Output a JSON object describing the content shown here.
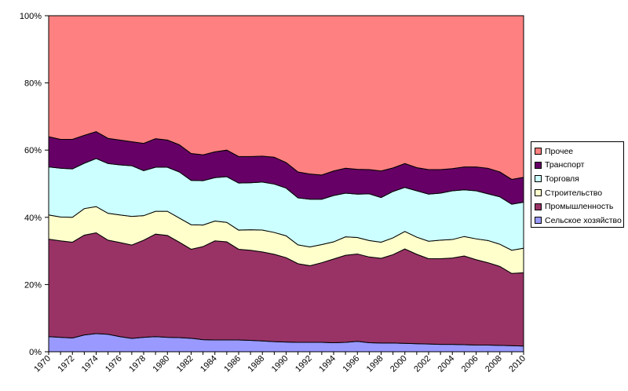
{
  "chart_data": {
    "type": "area",
    "stacked": true,
    "normalized": true,
    "x": [
      1970,
      1971,
      1972,
      1973,
      1974,
      1975,
      1976,
      1977,
      1978,
      1979,
      1980,
      1981,
      1982,
      1983,
      1984,
      1985,
      1986,
      1987,
      1988,
      1989,
      1990,
      1991,
      1992,
      1993,
      1994,
      1995,
      1996,
      1997,
      1998,
      1999,
      2000,
      2001,
      2002,
      2003,
      2004,
      2005,
      2006,
      2007,
      2008,
      2009,
      2010
    ],
    "x_tick_labels": [
      "1970",
      "1972",
      "1974",
      "1976",
      "1978",
      "1980",
      "1982",
      "1984",
      "1986",
      "1988",
      "1990",
      "1992",
      "1994",
      "1996",
      "1998",
      "2000",
      "2002",
      "2004",
      "2006",
      "2008",
      "2010"
    ],
    "y_tick_labels": [
      "0%",
      "20%",
      "40%",
      "60%",
      "80%",
      "100%"
    ],
    "ylim": [
      0,
      100
    ],
    "grid": false,
    "legend_position": "right",
    "series": [
      {
        "name": "Сельское хозяйство",
        "color": "#9999ff",
        "values": [
          4.5,
          4.3,
          4.1,
          5.0,
          5.4,
          5.2,
          4.5,
          4.0,
          4.3,
          4.5,
          4.3,
          4.2,
          4.0,
          3.6,
          3.5,
          3.5,
          3.5,
          3.4,
          3.2,
          3.0,
          2.9,
          2.8,
          2.8,
          2.8,
          2.7,
          2.8,
          3.1,
          2.7,
          2.6,
          2.6,
          2.5,
          2.4,
          2.3,
          2.2,
          2.2,
          2.1,
          2.0,
          2.0,
          1.9,
          1.8,
          1.7
        ]
      },
      {
        "name": "Промышленность",
        "color": "#993366",
        "values": [
          29.0,
          28.7,
          28.5,
          29.7,
          30.0,
          28.0,
          28.0,
          28.0,
          28.9,
          30.5,
          30.3,
          28.4,
          26.5,
          27.7,
          29.5,
          29.2,
          27.0,
          26.8,
          26.5,
          26.0,
          25.1,
          23.4,
          22.8,
          23.7,
          24.9,
          25.9,
          26.0,
          25.5,
          25.2,
          26.3,
          28.1,
          26.6,
          25.4,
          25.5,
          25.7,
          26.4,
          25.4,
          24.5,
          23.5,
          21.5,
          21.8
        ]
      },
      {
        "name": "Строительство",
        "color": "#ffffcc",
        "values": [
          7.2,
          7.1,
          7.4,
          7.9,
          7.8,
          8.0,
          8.2,
          8.6,
          7.3,
          6.8,
          7.2,
          7.2,
          7.3,
          6.4,
          5.9,
          5.8,
          5.7,
          6.1,
          6.5,
          6.5,
          6.5,
          5.6,
          5.6,
          5.4,
          5.1,
          5.5,
          4.9,
          4.9,
          4.8,
          5.0,
          5.2,
          5.1,
          5.2,
          5.5,
          5.5,
          5.8,
          6.2,
          6.6,
          6.6,
          6.9,
          7.3
        ]
      },
      {
        "name": "Торговля",
        "color": "#ccffff",
        "values": [
          14.3,
          14.5,
          14.4,
          13.5,
          14.3,
          14.8,
          14.9,
          15.2,
          13.4,
          13.1,
          13.1,
          13.7,
          13.2,
          13.2,
          12.9,
          13.6,
          14.0,
          14.0,
          14.3,
          14.4,
          14.2,
          14.0,
          14.2,
          13.5,
          13.8,
          13.0,
          12.9,
          13.9,
          13.3,
          13.8,
          13.1,
          13.8,
          14.0,
          14.0,
          14.5,
          13.9,
          14.3,
          13.9,
          14.1,
          13.7,
          13.7
        ]
      },
      {
        "name": "Транспорт",
        "color": "#660066",
        "values": [
          9.0,
          8.6,
          8.8,
          8.3,
          8.0,
          7.5,
          7.4,
          7.2,
          8.1,
          8.5,
          8.1,
          8.1,
          8.0,
          7.7,
          7.7,
          7.9,
          7.9,
          7.8,
          7.7,
          8.0,
          7.6,
          7.7,
          7.5,
          7.2,
          7.3,
          7.4,
          7.4,
          7.2,
          7.9,
          7.0,
          7.1,
          6.9,
          7.3,
          7.0,
          6.6,
          6.8,
          7.1,
          7.6,
          7.4,
          7.4,
          7.4
        ]
      },
      {
        "name": "Прочее",
        "color": "#ff8080",
        "values": [
          36.0,
          36.8,
          36.8,
          35.6,
          34.5,
          36.5,
          37.0,
          37.8,
          38.0,
          36.6,
          37.0,
          38.4,
          41.0,
          41.4,
          40.5,
          40.0,
          41.9,
          41.9,
          41.8,
          42.1,
          43.7,
          46.5,
          47.1,
          47.4,
          46.2,
          45.4,
          45.7,
          45.8,
          46.2,
          45.3,
          44.0,
          45.2,
          45.8,
          45.8,
          45.5,
          45.0,
          45.0,
          45.4,
          46.5,
          48.7,
          48.1
        ]
      }
    ]
  }
}
